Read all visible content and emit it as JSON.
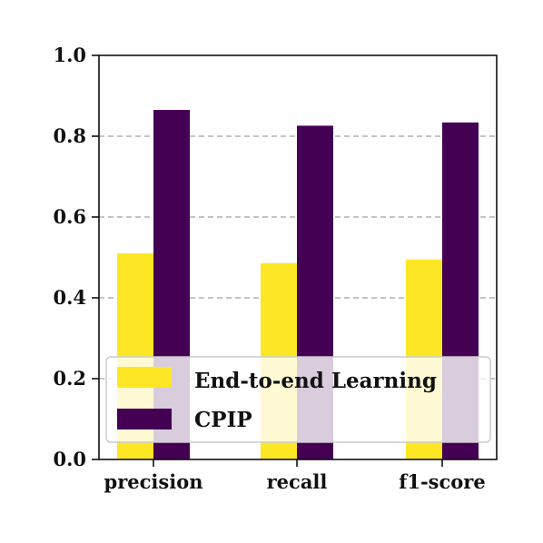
{
  "chart_data": {
    "type": "bar",
    "title": "",
    "xlabel": "",
    "ylabel": "",
    "categories": [
      "precision",
      "recall",
      "f1-score"
    ],
    "series": [
      {
        "name": "End-to-end Learning",
        "values": [
          0.51,
          0.486,
          0.495
        ],
        "color": "#fde725"
      },
      {
        "name": "CPIP",
        "values": [
          0.865,
          0.826,
          0.834
        ],
        "color": "#440154"
      }
    ],
    "ylim": [
      0,
      1.0
    ],
    "yticks": [
      "0.0",
      "0.2",
      "0.4",
      "0.6",
      "0.8",
      "1.0"
    ],
    "grid": "horizontal-dashed",
    "legend_position": "lower-right"
  }
}
